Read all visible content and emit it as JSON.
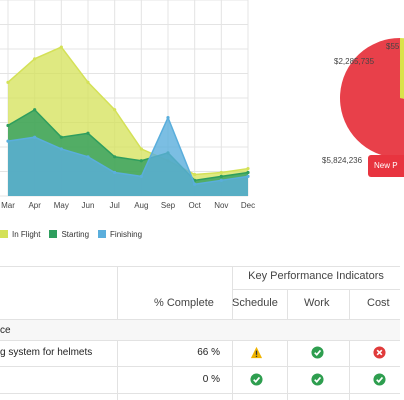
{
  "chart_data": {
    "type": "area",
    "x": [
      "Mar",
      "Apr",
      "May",
      "Jun",
      "Jul",
      "Aug",
      "Sep",
      "Oct",
      "Nov",
      "Dec"
    ],
    "series": [
      {
        "name": "In Flight",
        "color": "#d4e157",
        "values": [
          58,
          70,
          76,
          58,
          44,
          24,
          18,
          11,
          12,
          14
        ]
      },
      {
        "name": "Starting",
        "color": "#2e9e5e",
        "values": [
          36,
          44,
          30,
          32,
          20,
          18,
          22,
          8,
          10,
          12
        ]
      },
      {
        "name": "Finishing",
        "color": "#5aaedc",
        "values": [
          28,
          30,
          24,
          20,
          12,
          10,
          40,
          6,
          8,
          10
        ]
      }
    ],
    "ylim": [
      0,
      100
    ],
    "grid": true,
    "legend_position": "bottom-left"
  },
  "pie": {
    "values": [
      2285735,
      5824236
    ],
    "labels": [
      "$2,285,735",
      "$5,824,236"
    ],
    "top_label": "$55",
    "colors": [
      "#d9e34a",
      "#e8404a"
    ],
    "badge": "New P"
  },
  "table": {
    "kpi_group": "Key Performance Indicators",
    "columns": {
      "pct": "% Complete",
      "schedule": "Schedule",
      "work": "Work",
      "cost": "Cost"
    },
    "section": "ce",
    "rows": [
      {
        "name": "g system for helmets",
        "pct": "66 %",
        "schedule": "warning-icon",
        "work": "check-icon",
        "cost": "error-icon"
      },
      {
        "name": "",
        "pct": "0 %",
        "schedule": "check-icon",
        "work": "check-icon",
        "cost": "check-icon"
      }
    ]
  }
}
